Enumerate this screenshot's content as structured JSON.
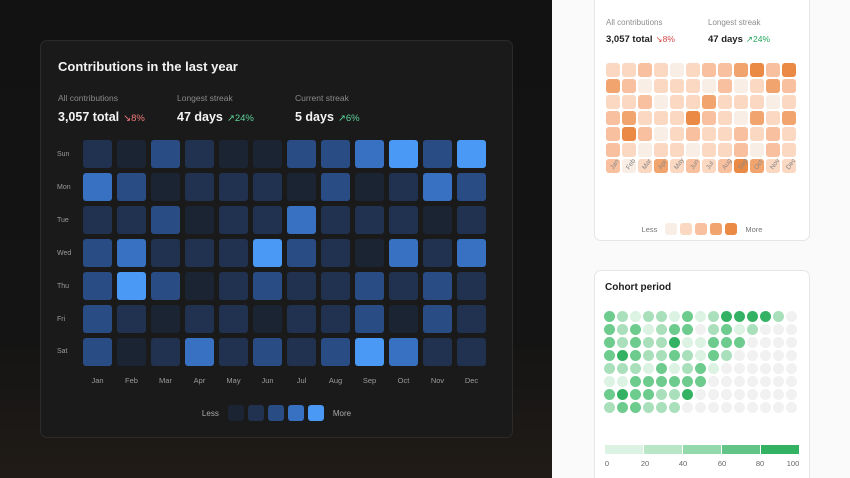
{
  "dark": {
    "title": "Contributions in the last year",
    "stats": [
      {
        "label": "All contributions",
        "value": "3,057 total",
        "change": "↘8%",
        "dir": "down"
      },
      {
        "label": "Longest streak",
        "value": "47 days",
        "change": "↗24%",
        "dir": "up"
      },
      {
        "label": "Current streak",
        "value": "5 days",
        "change": "↗6%",
        "dir": "up"
      }
    ],
    "days": [
      "Sun",
      "Mon",
      "Tue",
      "Wed",
      "Thu",
      "Fri",
      "Sat"
    ],
    "months": [
      "Jan",
      "Feb",
      "Mar",
      "Apr",
      "May",
      "Jun",
      "Jul",
      "Aug",
      "Sep",
      "Oct",
      "Nov",
      "Dec"
    ],
    "levels": [
      [
        1,
        0,
        2,
        1,
        0,
        0,
        2,
        2,
        3,
        4,
        2,
        4
      ],
      [
        3,
        2,
        0,
        1,
        1,
        1,
        0,
        2,
        0,
        1,
        3,
        2
      ],
      [
        1,
        1,
        2,
        0,
        1,
        1,
        3,
        1,
        1,
        1,
        0,
        1
      ],
      [
        2,
        3,
        1,
        1,
        1,
        4,
        2,
        1,
        0,
        3,
        1,
        3
      ],
      [
        2,
        4,
        2,
        0,
        1,
        2,
        1,
        1,
        2,
        1,
        2,
        1
      ],
      [
        2,
        1,
        0,
        1,
        1,
        0,
        1,
        1,
        2,
        0,
        2,
        1
      ],
      [
        2,
        0,
        1,
        3,
        1,
        2,
        1,
        2,
        4,
        3,
        1,
        1
      ]
    ],
    "palette": [
      "#1b2432",
      "#20324f",
      "#2a4c85",
      "#3870c2",
      "#4a9af5"
    ],
    "legend_less": "Less",
    "legend_more": "More"
  },
  "orange": {
    "stats": [
      {
        "label": "All contributions",
        "value": "3,057 total",
        "change": "↘8%",
        "dir": "down"
      },
      {
        "label": "Longest streak",
        "value": "47 days",
        "change": "↗24%",
        "dir": "up"
      }
    ],
    "months": [
      "Jan",
      "Feb",
      "Mar",
      "Apr",
      "May",
      "Jun",
      "Jul",
      "Aug",
      "Sep",
      "Oct",
      "Nov",
      "Dec"
    ],
    "levels": [
      [
        1,
        1,
        2,
        1,
        0,
        1,
        2,
        2,
        3,
        4,
        2,
        4
      ],
      [
        3,
        2,
        0,
        1,
        1,
        1,
        0,
        2,
        0,
        1,
        3,
        2
      ],
      [
        1,
        1,
        2,
        0,
        1,
        1,
        3,
        1,
        1,
        1,
        0,
        1
      ],
      [
        2,
        3,
        1,
        1,
        1,
        4,
        2,
        1,
        0,
        3,
        1,
        3
      ],
      [
        2,
        4,
        2,
        0,
        1,
        2,
        1,
        1,
        2,
        1,
        2,
        1
      ],
      [
        2,
        1,
        0,
        1,
        1,
        0,
        1,
        1,
        2,
        0,
        2,
        1
      ],
      [
        2,
        0,
        1,
        3,
        1,
        2,
        1,
        2,
        4,
        3,
        1,
        1
      ]
    ],
    "palette": [
      "#f8eee6",
      "#fbd8c2",
      "#f8c09e",
      "#f2a46f",
      "#ea8a45"
    ],
    "legend_less": "Less",
    "legend_more": "More"
  },
  "cohort": {
    "title": "Cohort period",
    "levels": [
      [
        3,
        2,
        1,
        2,
        2,
        1,
        3,
        1,
        2,
        4,
        4,
        4,
        4,
        2,
        0
      ],
      [
        3,
        2,
        3,
        1,
        2,
        3,
        3,
        0,
        2,
        3,
        1,
        2,
        0,
        0,
        0
      ],
      [
        3,
        2,
        3,
        2,
        2,
        4,
        1,
        1,
        3,
        3,
        3,
        0,
        0,
        0,
        0
      ],
      [
        3,
        4,
        3,
        2,
        2,
        3,
        2,
        1,
        3,
        2,
        0,
        0,
        0,
        0,
        0
      ],
      [
        2,
        2,
        2,
        1,
        3,
        1,
        2,
        3,
        1,
        0,
        0,
        0,
        0,
        0,
        0
      ],
      [
        1,
        1,
        3,
        3,
        3,
        3,
        3,
        3,
        0,
        0,
        0,
        0,
        0,
        0,
        0
      ],
      [
        3,
        4,
        3,
        3,
        2,
        2,
        4,
        0,
        0,
        0,
        0,
        0,
        0,
        0,
        0
      ],
      [
        2,
        3,
        3,
        2,
        2,
        2,
        0,
        0,
        0,
        0,
        0,
        0,
        0,
        0,
        0
      ]
    ],
    "palette": [
      "#f1f1f1",
      "#dcf2e3",
      "#a9e0bb",
      "#6ccb8d",
      "#34b263"
    ],
    "scale_colors": [
      "#dcf2e3",
      "#b8e6c6",
      "#94d9ab",
      "#62c487",
      "#34b263"
    ],
    "ticks": [
      "0",
      "20",
      "40",
      "60",
      "80",
      "100"
    ]
  }
}
